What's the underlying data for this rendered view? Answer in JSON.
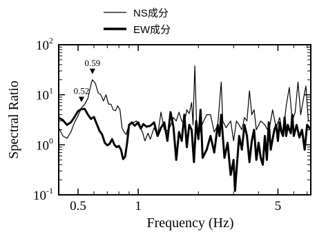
{
  "chart_data": {
    "type": "line",
    "xlabel": "Frequency (Hz)",
    "ylabel": "Spectral Ratio",
    "x_scale": "log",
    "y_scale": "log",
    "xlim": [
      0.4,
      7.3
    ],
    "ylim": [
      0.1,
      100
    ],
    "x_ticks": [
      {
        "value": 0.5,
        "label": "0.5"
      },
      {
        "value": 1,
        "label": "1"
      },
      {
        "value": 5,
        "label": "5"
      }
    ],
    "y_ticks": [
      {
        "value": 0.1,
        "base": "10",
        "exp": "-1"
      },
      {
        "value": 1,
        "base": "10",
        "exp": "0"
      },
      {
        "value": 10,
        "base": "10",
        "exp": "1"
      },
      {
        "value": 100,
        "base": "10",
        "exp": "2"
      }
    ],
    "legend": {
      "position": "top"
    },
    "series": [
      {
        "name": "NS成分",
        "style": "thin",
        "color": "#000000",
        "points": [
          [
            0.4,
            2.2
          ],
          [
            0.42,
            1.5
          ],
          [
            0.44,
            1.35
          ],
          [
            0.46,
            1.8
          ],
          [
            0.48,
            2.8
          ],
          [
            0.5,
            3.8
          ],
          [
            0.52,
            5.5
          ],
          [
            0.54,
            6.5
          ],
          [
            0.56,
            8.5
          ],
          [
            0.58,
            16
          ],
          [
            0.59,
            20
          ],
          [
            0.61,
            17
          ],
          [
            0.63,
            11
          ],
          [
            0.65,
            10
          ],
          [
            0.67,
            7.5
          ],
          [
            0.69,
            10
          ],
          [
            0.71,
            6.5
          ],
          [
            0.73,
            6.5
          ],
          [
            0.75,
            5
          ],
          [
            0.77,
            4.8
          ],
          [
            0.79,
            6
          ],
          [
            0.81,
            5
          ],
          [
            0.83,
            2.2
          ],
          [
            0.85,
            1.8
          ],
          [
            0.87,
            1.6
          ],
          [
            0.89,
            2.2
          ],
          [
            0.92,
            2.6
          ],
          [
            0.95,
            2.8
          ],
          [
            0.98,
            3
          ],
          [
            1.0,
            2.5
          ],
          [
            1.05,
            1.8
          ],
          [
            1.08,
            1.2
          ],
          [
            1.12,
            1.7
          ],
          [
            1.15,
            1.3
          ],
          [
            1.2,
            2.2
          ],
          [
            1.25,
            1.5
          ],
          [
            1.3,
            4.5
          ],
          [
            1.35,
            2
          ],
          [
            1.4,
            1.9
          ],
          [
            1.45,
            2.4
          ],
          [
            1.5,
            3.5
          ],
          [
            1.55,
            3
          ],
          [
            1.6,
            4.5
          ],
          [
            1.65,
            3
          ],
          [
            1.7,
            2.7
          ],
          [
            1.75,
            5
          ],
          [
            1.8,
            4.2
          ],
          [
            1.85,
            7
          ],
          [
            1.88,
            2.5
          ],
          [
            1.92,
            38
          ],
          [
            1.96,
            2.5
          ],
          [
            2.0,
            1.5
          ],
          [
            2.1,
            2.7
          ],
          [
            2.2,
            4
          ],
          [
            2.3,
            4
          ],
          [
            2.4,
            1.8
          ],
          [
            2.5,
            2.5
          ],
          [
            2.6,
            18
          ],
          [
            2.65,
            3
          ],
          [
            2.75,
            2.2
          ],
          [
            2.9,
            3
          ],
          [
            3.0,
            1.2
          ],
          [
            3.1,
            3
          ],
          [
            3.2,
            2.5
          ],
          [
            3.3,
            2
          ],
          [
            3.4,
            3.5
          ],
          [
            3.5,
            3
          ],
          [
            3.6,
            12
          ],
          [
            3.7,
            4
          ],
          [
            3.8,
            5
          ],
          [
            3.9,
            2
          ],
          [
            4.1,
            3
          ],
          [
            4.3,
            2.5
          ],
          [
            4.5,
            1.8
          ],
          [
            4.7,
            5
          ],
          [
            4.9,
            2.2
          ],
          [
            5.1,
            3.5
          ],
          [
            5.3,
            1.5
          ],
          [
            5.5,
            6
          ],
          [
            5.7,
            14
          ],
          [
            5.9,
            3
          ],
          [
            6.1,
            4.5
          ],
          [
            6.3,
            18
          ],
          [
            6.5,
            4
          ],
          [
            6.7,
            8
          ],
          [
            6.9,
            15
          ],
          [
            7.1,
            3
          ],
          [
            7.3,
            3
          ]
        ]
      },
      {
        "name": "EW成分",
        "style": "thick",
        "color": "#000000",
        "points": [
          [
            0.4,
            3.5
          ],
          [
            0.42,
            3.1
          ],
          [
            0.44,
            2.5
          ],
          [
            0.46,
            2.8
          ],
          [
            0.48,
            3.6
          ],
          [
            0.5,
            4.7
          ],
          [
            0.52,
            5.2
          ],
          [
            0.54,
            5.2
          ],
          [
            0.56,
            4
          ],
          [
            0.58,
            3.3
          ],
          [
            0.6,
            3.6
          ],
          [
            0.62,
            2.6
          ],
          [
            0.64,
            1.9
          ],
          [
            0.66,
            1.6
          ],
          [
            0.68,
            1.1
          ],
          [
            0.7,
            0.98
          ],
          [
            0.72,
            1.05
          ],
          [
            0.74,
            1.3
          ],
          [
            0.76,
            1.0
          ],
          [
            0.78,
            0.9
          ],
          [
            0.8,
            0.95
          ],
          [
            0.82,
            0.8
          ],
          [
            0.84,
            0.52
          ],
          [
            0.86,
            0.58
          ],
          [
            0.88,
            1.1
          ],
          [
            0.9,
            2.5
          ],
          [
            0.93,
            2.8
          ],
          [
            0.96,
            2.4
          ],
          [
            1.0,
            2.8
          ],
          [
            1.03,
            2.1
          ],
          [
            1.06,
            2.6
          ],
          [
            1.1,
            2.3
          ],
          [
            1.15,
            2.4
          ],
          [
            1.2,
            2.8
          ],
          [
            1.25,
            1.5
          ],
          [
            1.3,
            2.2
          ],
          [
            1.35,
            2.8
          ],
          [
            1.4,
            1.2
          ],
          [
            1.45,
            4.5
          ],
          [
            1.5,
            2.3
          ],
          [
            1.55,
            0.5
          ],
          [
            1.6,
            1.8
          ],
          [
            1.65,
            1.2
          ],
          [
            1.7,
            4
          ],
          [
            1.75,
            0.9
          ],
          [
            1.8,
            2.5
          ],
          [
            1.85,
            2
          ],
          [
            1.9,
            0.45
          ],
          [
            1.95,
            3
          ],
          [
            2.0,
            1.3
          ],
          [
            2.05,
            5
          ],
          [
            2.1,
            0.55
          ],
          [
            2.2,
            0.8
          ],
          [
            2.3,
            1.5
          ],
          [
            2.4,
            0.7
          ],
          [
            2.5,
            2.5
          ],
          [
            2.55,
            1.5
          ],
          [
            2.6,
            4
          ],
          [
            2.7,
            0.55
          ],
          [
            2.8,
            1.1
          ],
          [
            2.9,
            0.25
          ],
          [
            3.0,
            0.5
          ],
          [
            3.05,
            0.12
          ],
          [
            3.1,
            0.3
          ],
          [
            3.2,
            1.5
          ],
          [
            3.3,
            0.8
          ],
          [
            3.4,
            2.5
          ],
          [
            3.5,
            1.5
          ],
          [
            3.6,
            0.45
          ],
          [
            3.7,
            1.2
          ],
          [
            3.8,
            2
          ],
          [
            3.9,
            0.5
          ],
          [
            4.0,
            1.1
          ],
          [
            4.1,
            0.55
          ],
          [
            4.2,
            0.4
          ],
          [
            4.3,
            1.5
          ],
          [
            4.4,
            0.5
          ],
          [
            4.5,
            2.8
          ],
          [
            4.6,
            0.8
          ],
          [
            4.7,
            1.3
          ],
          [
            4.8,
            2
          ],
          [
            4.9,
            2.5
          ],
          [
            5.0,
            1.2
          ],
          [
            5.1,
            2.8
          ],
          [
            5.2,
            1.8
          ],
          [
            5.3,
            1.5
          ],
          [
            5.4,
            3.5
          ],
          [
            5.5,
            1.5
          ],
          [
            5.6,
            2.5
          ],
          [
            5.7,
            2
          ],
          [
            5.8,
            1.7
          ],
          [
            5.9,
            4
          ],
          [
            6.0,
            1.5
          ],
          [
            6.2,
            2.5
          ],
          [
            6.4,
            1.4
          ],
          [
            6.6,
            2
          ],
          [
            6.8,
            0.8
          ],
          [
            7.0,
            2.5
          ],
          [
            7.3,
            2
          ]
        ]
      }
    ],
    "annotations": [
      {
        "label": "0.52",
        "x": 0.52,
        "y": 5.5
      },
      {
        "label": "0.59",
        "x": 0.59,
        "y": 20
      }
    ]
  }
}
